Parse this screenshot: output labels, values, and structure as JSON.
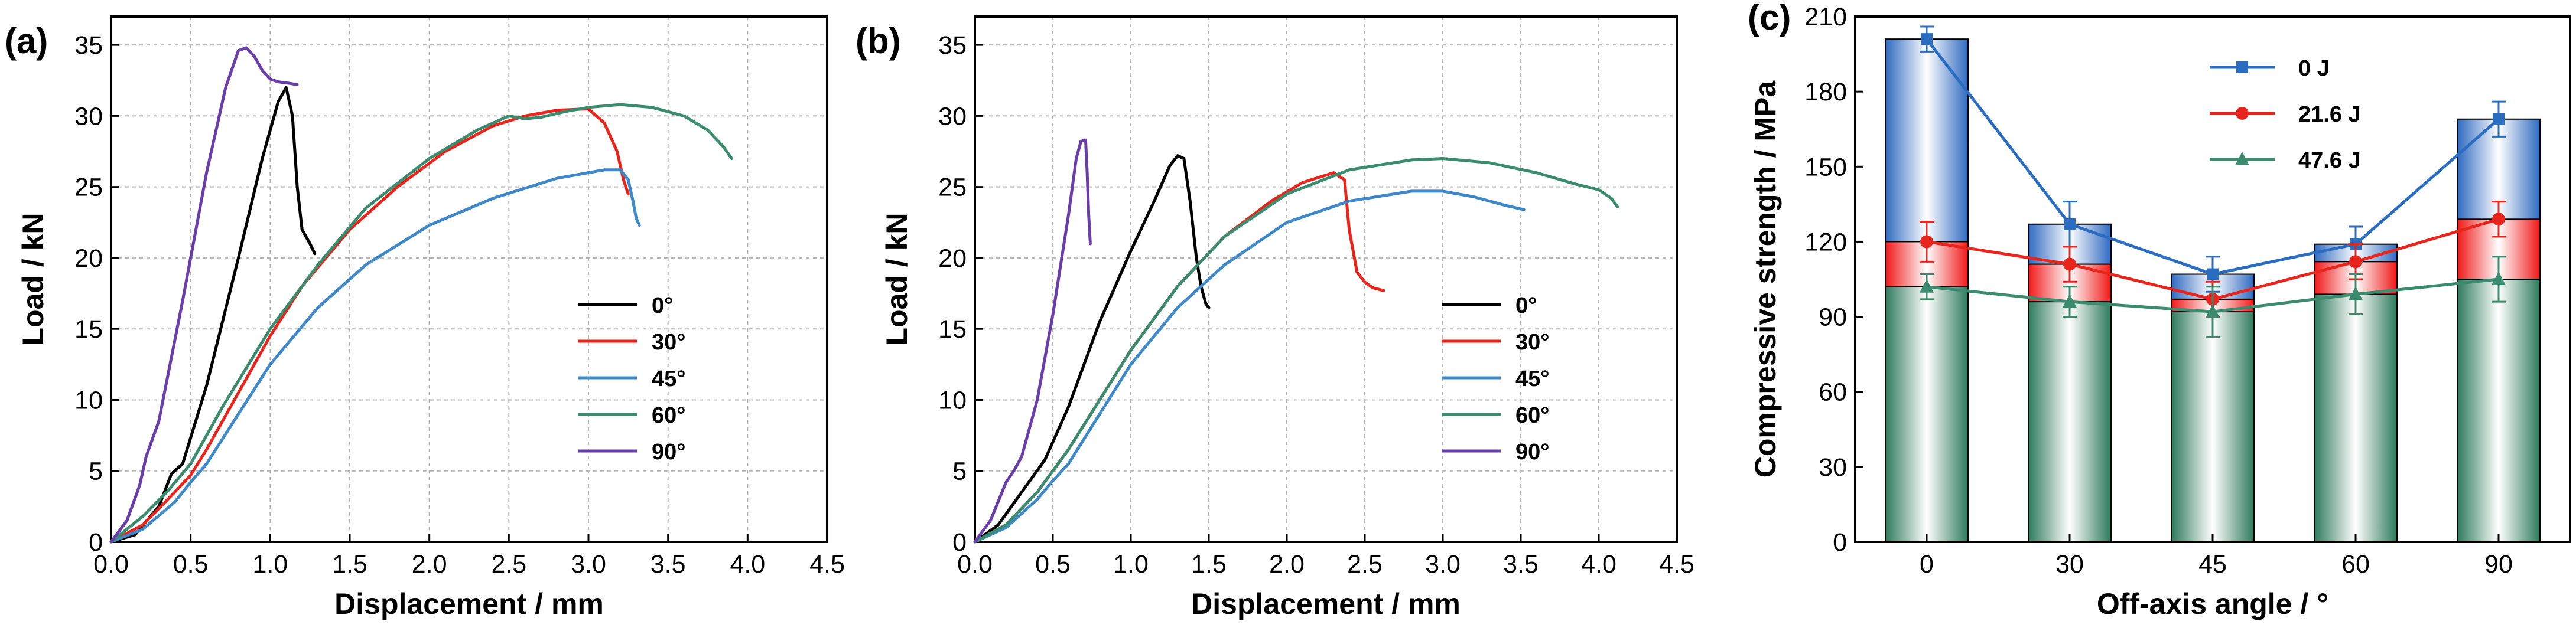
{
  "chart_data": [
    {
      "id": "a",
      "type": "line",
      "panel_label": "(a)",
      "xlabel": "Displacement / mm",
      "ylabel": "Load / kN",
      "xlim": [
        0,
        4.5
      ],
      "ylim": [
        0,
        37
      ],
      "xticks": [
        0.0,
        0.5,
        1.0,
        1.5,
        2.0,
        2.5,
        3.0,
        3.5,
        4.0,
        4.5
      ],
      "xtick_labels": [
        "0.0",
        "0.5",
        "1.0",
        "1.5",
        "2.0",
        "2.5",
        "3.0",
        "3.5",
        "4.0",
        "4.5"
      ],
      "yticks": [
        0,
        5,
        10,
        15,
        20,
        25,
        30,
        35
      ],
      "ytick_labels": [
        "0",
        "5",
        "10",
        "15",
        "20",
        "25",
        "30",
        "35"
      ],
      "grid": true,
      "legend_position": "center-right",
      "series": [
        {
          "name": "0°",
          "color": "#000000",
          "x": [
            0,
            0.15,
            0.3,
            0.38,
            0.45,
            0.6,
            0.8,
            0.95,
            1.05,
            1.1,
            1.14,
            1.17,
            1.2,
            1.25,
            1.28
          ],
          "y": [
            0,
            0.5,
            2.5,
            4.8,
            5.5,
            11,
            20,
            27,
            31,
            32,
            30,
            25,
            22,
            21,
            20.3
          ]
        },
        {
          "name": "30°",
          "color": "#e8251c",
          "x": [
            0,
            0.2,
            0.4,
            0.5,
            0.6,
            0.8,
            1.0,
            1.2,
            1.5,
            1.8,
            2.1,
            2.4,
            2.6,
            2.8,
            3.0,
            3.1,
            3.18,
            3.22,
            3.25
          ],
          "y": [
            0,
            1.2,
            3.5,
            4.7,
            6.5,
            10.5,
            14.5,
            18,
            22,
            25,
            27.5,
            29.3,
            30,
            30.4,
            30.5,
            29.5,
            27.5,
            25.5,
            24.5
          ]
        },
        {
          "name": "45°",
          "color": "#3f88c9",
          "x": [
            0,
            0.2,
            0.4,
            0.5,
            0.6,
            0.8,
            1.0,
            1.3,
            1.6,
            2.0,
            2.4,
            2.8,
            3.1,
            3.2,
            3.25,
            3.28,
            3.3,
            3.32
          ],
          "y": [
            0,
            0.9,
            2.8,
            4.2,
            5.5,
            9,
            12.5,
            16.5,
            19.5,
            22.3,
            24.2,
            25.6,
            26.2,
            26.2,
            25.5,
            24,
            22.8,
            22.3
          ]
        },
        {
          "name": "60°",
          "color": "#3b8c6e",
          "x": [
            0,
            0.2,
            0.35,
            0.5,
            0.7,
            1.0,
            1.3,
            1.6,
            2.0,
            2.3,
            2.5,
            2.6,
            2.7,
            2.85,
            3.0,
            3.2,
            3.4,
            3.6,
            3.75,
            3.85,
            3.9
          ],
          "y": [
            0,
            1.8,
            3.5,
            5.5,
            9.5,
            15,
            19.5,
            23.5,
            27,
            29,
            30,
            29.8,
            29.9,
            30.3,
            30.6,
            30.8,
            30.6,
            30,
            29,
            27.8,
            27
          ]
        },
        {
          "name": "90°",
          "color": "#6a3ea8",
          "x": [
            0,
            0.1,
            0.18,
            0.22,
            0.3,
            0.45,
            0.6,
            0.72,
            0.8,
            0.85,
            0.9,
            0.95,
            1.0,
            1.05,
            1.12,
            1.17
          ],
          "y": [
            0,
            1.5,
            4,
            6,
            8.5,
            17,
            26,
            32,
            34.6,
            34.8,
            34.2,
            33.2,
            32.6,
            32.4,
            32.3,
            32.2
          ]
        }
      ]
    },
    {
      "id": "b",
      "type": "line",
      "panel_label": "(b)",
      "xlabel": "Displacement / mm",
      "ylabel": "Load / kN",
      "xlim": [
        0,
        4.5
      ],
      "ylim": [
        0,
        37
      ],
      "xticks": [
        0.0,
        0.5,
        1.0,
        1.5,
        2.0,
        2.5,
        3.0,
        3.5,
        4.0,
        4.5
      ],
      "xtick_labels": [
        "0.0",
        "0.5",
        "1.0",
        "1.5",
        "2.0",
        "2.5",
        "3.0",
        "3.5",
        "4.0",
        "4.5"
      ],
      "yticks": [
        0,
        5,
        10,
        15,
        20,
        25,
        30,
        35
      ],
      "ytick_labels": [
        "0",
        "5",
        "10",
        "15",
        "20",
        "25",
        "30",
        "35"
      ],
      "grid": true,
      "legend_position": "center-right",
      "series": [
        {
          "name": "0°",
          "color": "#000000",
          "x": [
            0,
            0.15,
            0.3,
            0.45,
            0.6,
            0.8,
            1.0,
            1.15,
            1.25,
            1.3,
            1.34,
            1.38,
            1.42,
            1.45,
            1.48,
            1.5
          ],
          "y": [
            0,
            1.2,
            3.5,
            5.8,
            9.5,
            15.5,
            20.5,
            24,
            26.5,
            27.2,
            27,
            24,
            20,
            18,
            16.8,
            16.5
          ]
        },
        {
          "name": "30°",
          "color": "#e8251c",
          "x": [
            0,
            0.2,
            0.4,
            0.6,
            0.8,
            1.0,
            1.3,
            1.6,
            1.9,
            2.1,
            2.3,
            2.37,
            2.4,
            2.45,
            2.5,
            2.55,
            2.62
          ],
          "y": [
            0,
            1.2,
            3.5,
            6.5,
            10,
            13.5,
            18,
            21.5,
            24,
            25.3,
            26,
            25.5,
            22,
            19,
            18.3,
            17.9,
            17.7
          ]
        },
        {
          "name": "45°",
          "color": "#3f88c9",
          "x": [
            0,
            0.2,
            0.4,
            0.5,
            0.6,
            0.8,
            1.0,
            1.3,
            1.6,
            2.0,
            2.4,
            2.8,
            3.0,
            3.2,
            3.4,
            3.52
          ],
          "y": [
            0,
            1,
            3,
            4.3,
            5.5,
            9,
            12.5,
            16.5,
            19.5,
            22.5,
            24,
            24.7,
            24.7,
            24.3,
            23.7,
            23.4
          ]
        },
        {
          "name": "60°",
          "color": "#3b8c6e",
          "x": [
            0,
            0.2,
            0.4,
            0.6,
            0.8,
            1.0,
            1.3,
            1.6,
            2.0,
            2.4,
            2.8,
            3.0,
            3.3,
            3.6,
            3.85,
            4.0,
            4.08,
            4.12
          ],
          "y": [
            0,
            1.2,
            3.5,
            6.5,
            10,
            13.5,
            18,
            21.5,
            24.5,
            26.2,
            26.9,
            27,
            26.7,
            26,
            25.2,
            24.8,
            24.2,
            23.6
          ]
        },
        {
          "name": "90°",
          "color": "#6a3ea8",
          "x": [
            0,
            0.1,
            0.2,
            0.25,
            0.3,
            0.4,
            0.5,
            0.6,
            0.65,
            0.68,
            0.7,
            0.71,
            0.72,
            0.73,
            0.74
          ],
          "y": [
            0,
            1.5,
            4.2,
            5,
            6,
            10,
            16,
            23,
            27,
            28.2,
            28.3,
            28.3,
            26,
            23,
            21
          ]
        }
      ]
    },
    {
      "id": "c",
      "type": "bar",
      "panel_label": "(c)",
      "xlabel": "Off-axis angle / °",
      "ylabel": "Compressive strength / MPa",
      "categories": [
        "0",
        "30",
        "45",
        "60",
        "90"
      ],
      "ylim": [
        0,
        210
      ],
      "yticks": [
        0,
        30,
        60,
        90,
        120,
        150,
        180,
        210
      ],
      "ytick_labels": [
        "0",
        "30",
        "60",
        "90",
        "120",
        "150",
        "180",
        "210"
      ],
      "grid": false,
      "legend_position": "top-center",
      "series": [
        {
          "name": "0 J",
          "color": "#2a6cc0",
          "marker": "square",
          "values": [
            201,
            127,
            107,
            119,
            169
          ],
          "errors": [
            5,
            9,
            7,
            7,
            7
          ]
        },
        {
          "name": "21.6 J",
          "color": "#e8251c",
          "marker": "circle",
          "values": [
            120,
            111,
            97,
            112,
            129
          ],
          "errors": [
            8,
            7,
            7,
            7,
            7
          ]
        },
        {
          "name": "47.6 J",
          "color": "#3b8c6e",
          "marker": "triangle",
          "values": [
            102,
            96,
            92,
            99,
            105
          ],
          "errors": [
            5,
            6,
            10,
            8,
            9
          ]
        }
      ]
    }
  ]
}
